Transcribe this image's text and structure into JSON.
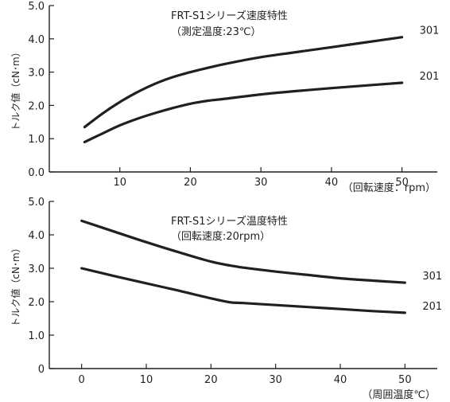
{
  "chart_data": [
    {
      "type": "line",
      "title": "FRT-S1シリーズ速度特性",
      "subtitle": "（測定温度:23℃）",
      "xlabel": "（回転速度：rpm）",
      "ylabel": "トルク値（cN･m）",
      "xlim": [
        0,
        55
      ],
      "ylim": [
        0,
        5.0
      ],
      "xticks": [
        "10",
        "20",
        "30",
        "40",
        "50"
      ],
      "yticks": [
        "0.0",
        "1.0",
        "2.0",
        "3.0",
        "4.0",
        "5.0"
      ],
      "series": [
        {
          "name": "301",
          "x": [
            5,
            7.5,
            10,
            12.5,
            15,
            17.5,
            20,
            22.5,
            25,
            30,
            35,
            40,
            45,
            50
          ],
          "values": [
            1.35,
            1.75,
            2.1,
            2.4,
            2.65,
            2.85,
            3.0,
            3.13,
            3.25,
            3.45,
            3.6,
            3.75,
            3.9,
            4.05
          ]
        },
        {
          "name": "201",
          "x": [
            5,
            7.5,
            10,
            12.5,
            15,
            17.5,
            20,
            22.5,
            25,
            30,
            35,
            40,
            45,
            50
          ],
          "values": [
            0.9,
            1.15,
            1.4,
            1.6,
            1.77,
            1.92,
            2.05,
            2.14,
            2.2,
            2.33,
            2.43,
            2.52,
            2.6,
            2.68
          ]
        }
      ],
      "grid": false,
      "legend": "none"
    },
    {
      "type": "line",
      "title": "FRT-S1シリーズ温度特性",
      "subtitle": "（回転速度:20rpm）",
      "xlabel": "（周囲温度℃）",
      "ylabel": "トルク値（cN･m）",
      "xlim": [
        -5,
        55
      ],
      "ylim": [
        0,
        5.0
      ],
      "xticks": [
        "0",
        "10",
        "20",
        "30",
        "40",
        "50"
      ],
      "yticks": [
        "0",
        "1.0",
        "2.0",
        "3.0",
        "4.0",
        "5.0"
      ],
      "series": [
        {
          "name": "301",
          "x": [
            0,
            5,
            10,
            15,
            20,
            23,
            25,
            30,
            35,
            40,
            45,
            50
          ],
          "values": [
            4.42,
            4.1,
            3.78,
            3.48,
            3.2,
            3.08,
            3.02,
            2.9,
            2.8,
            2.7,
            2.63,
            2.57
          ]
        },
        {
          "name": "201",
          "x": [
            0,
            5,
            10,
            15,
            20,
            23,
            25,
            30,
            35,
            40,
            45,
            50
          ],
          "values": [
            3.0,
            2.77,
            2.55,
            2.33,
            2.1,
            1.98,
            1.96,
            1.9,
            1.84,
            1.78,
            1.72,
            1.67
          ]
        }
      ],
      "grid": false,
      "legend": "none"
    }
  ]
}
